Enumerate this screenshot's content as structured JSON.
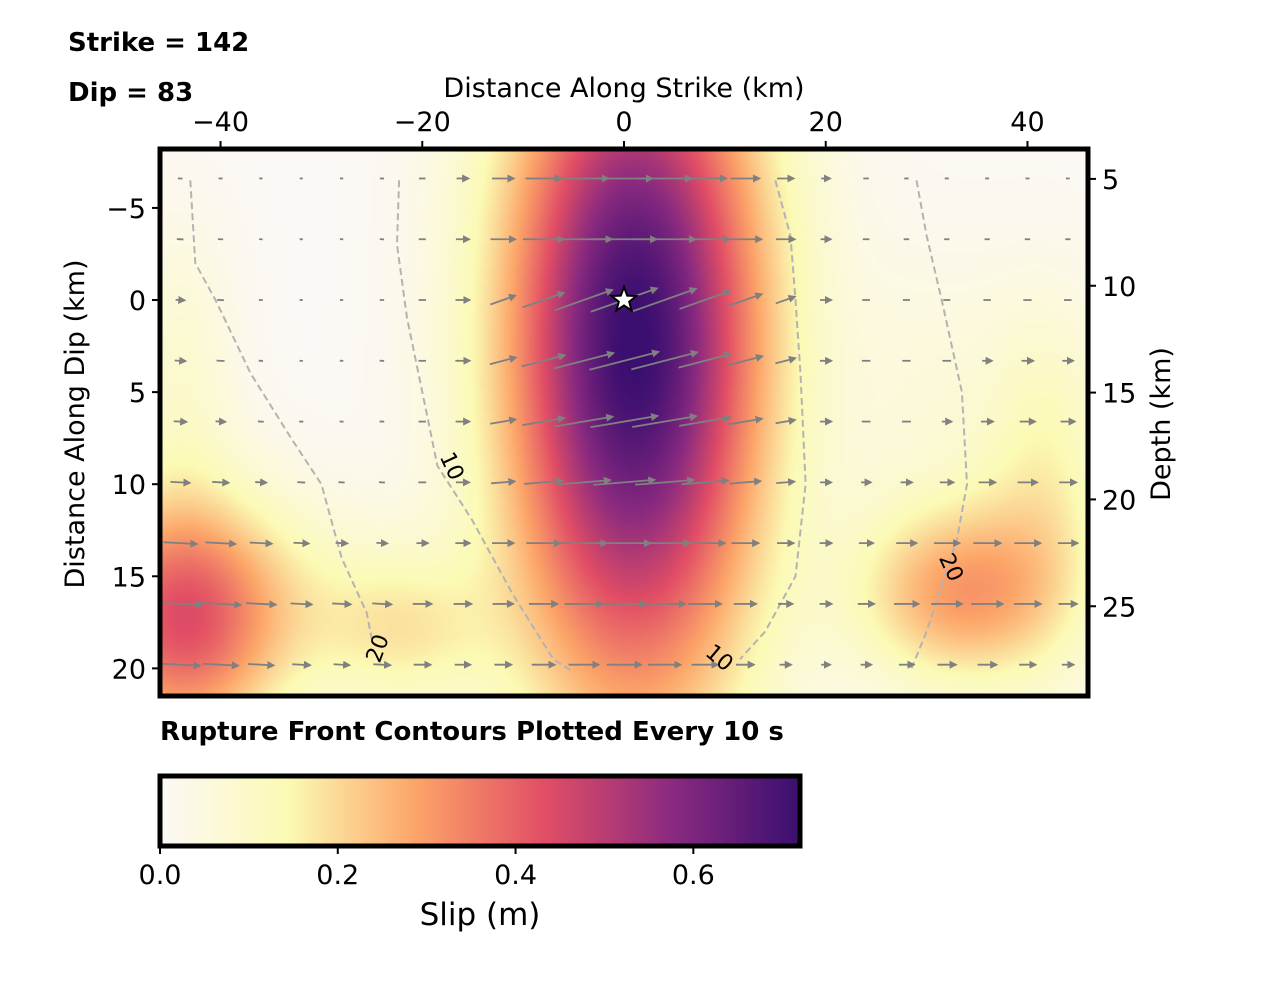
{
  "annotations": {
    "strike": "Strike = 142",
    "dip": "Dip = 83",
    "contour_note": "Rupture Front Contours Plotted Every 10 s"
  },
  "chart_data": {
    "type": "heatmap",
    "title": "",
    "xlabel": "Distance Along Strike (km)",
    "ylabel": "Distance Along Dip (km)",
    "y2label": "Depth (km)",
    "colorbar_label": "Slip (m)",
    "xlim": [
      -46,
      46
    ],
    "ylim": [
      21.5,
      -8.2
    ],
    "depth_lim": [
      3.6,
      29.2
    ],
    "xticks": [
      -40,
      -20,
      0,
      20,
      40
    ],
    "xtick_labels": [
      "−40",
      "−20",
      "0",
      "20",
      "40"
    ],
    "yticks": [
      -5,
      0,
      5,
      10,
      15,
      20
    ],
    "ytick_labels": [
      "−5",
      "0",
      "5",
      "10",
      "15",
      "20"
    ],
    "depth_ticks": [
      5,
      10,
      15,
      20,
      25
    ],
    "depth_tick_labels": [
      "5",
      "10",
      "15",
      "20",
      "25"
    ],
    "colorbar_range": [
      0,
      0.72
    ],
    "colorbar_ticks": [
      0.0,
      0.2,
      0.4,
      0.6
    ],
    "colorbar_tick_labels": [
      "0.0",
      "0.2",
      "0.4",
      "0.6"
    ],
    "colormap": [
      "#fcf8f6",
      "#fbfab4",
      "#fca468",
      "#e24e65",
      "#8a2a80",
      "#3b0f70"
    ],
    "hypocenter": {
      "x": 0,
      "y": 0
    },
    "slip_patches": [
      {
        "x": 1,
        "y": 3,
        "sx": 9,
        "sy": 14,
        "amp": 0.68
      },
      {
        "x": 2,
        "y": 0,
        "sx": 9,
        "sy": 7,
        "amp": 0.05
      },
      {
        "x": -44,
        "y": 18,
        "sx": 7,
        "sy": 5,
        "amp": 0.33
      },
      {
        "x": -40,
        "y": 16,
        "sx": 11,
        "sy": 4,
        "amp": 0.12
      },
      {
        "x": 33,
        "y": 16,
        "sx": 7,
        "sy": 3.5,
        "amp": 0.28
      },
      {
        "x": 42,
        "y": 10,
        "sx": 5,
        "sy": 7,
        "amp": 0.14
      },
      {
        "x": -44,
        "y": 4,
        "sx": 4,
        "sy": 6,
        "amp": 0.08
      },
      {
        "x": -22,
        "y": 18,
        "sx": 6,
        "sy": 3,
        "amp": 0.14
      },
      {
        "x": 30,
        "y": 5,
        "sx": 6,
        "sy": 6,
        "amp": 0.05
      }
    ],
    "contours": [
      {
        "label": "10",
        "label_at": [
          -17,
          9
        ],
        "label_angle": 65,
        "points": [
          [
            -22.3,
            -6.5
          ],
          [
            -22.5,
            -3
          ],
          [
            -21.5,
            1
          ],
          [
            -20,
            5
          ],
          [
            -18.5,
            9
          ],
          [
            -15,
            12
          ],
          [
            -11,
            16
          ],
          [
            -7,
            19.5
          ],
          [
            -5,
            20.2
          ]
        ]
      },
      {
        "label": "10",
        "label_at": [
          9.5,
          19.4
        ],
        "label_angle": 40,
        "points": [
          [
            15,
            -6.5
          ],
          [
            16.5,
            -3.5
          ],
          [
            17,
            0
          ],
          [
            17.5,
            4
          ],
          [
            18,
            10
          ],
          [
            17,
            15
          ],
          [
            14,
            18
          ],
          [
            11.5,
            19.5
          ]
        ]
      },
      {
        "label": "20",
        "label_at": [
          -24.5,
          18.9
        ],
        "label_angle": -70,
        "points": [
          [
            -43,
            -6.5
          ],
          [
            -42.5,
            -2
          ],
          [
            -40.5,
            0
          ],
          [
            -37,
            4
          ],
          [
            -33,
            7.5
          ],
          [
            -30,
            10
          ],
          [
            -28,
            14
          ],
          [
            -25.5,
            17
          ],
          [
            -25,
            18.4
          ]
        ]
      },
      {
        "label": "20",
        "label_at": [
          32.5,
          14.5
        ],
        "label_angle": 65,
        "points": [
          [
            29,
            -6.5
          ],
          [
            30,
            -3.5
          ],
          [
            31.5,
            0
          ],
          [
            33.5,
            5
          ],
          [
            34,
            10
          ],
          [
            33,
            13
          ],
          [
            31.5,
            15.5
          ],
          [
            30,
            18
          ],
          [
            28.5,
            20
          ]
        ]
      }
    ],
    "rake_grid": {
      "xs": [
        -44,
        -40,
        -36,
        -32,
        -28,
        -24,
        -20,
        -16,
        -12,
        -8,
        -4,
        0,
        4,
        8,
        12,
        16,
        20,
        24,
        28,
        32,
        36,
        40,
        44
      ],
      "ys": [
        -6.6,
        -3.3,
        0,
        3.3,
        6.6,
        9.9,
        13.2,
        16.5,
        19.8
      ]
    }
  }
}
